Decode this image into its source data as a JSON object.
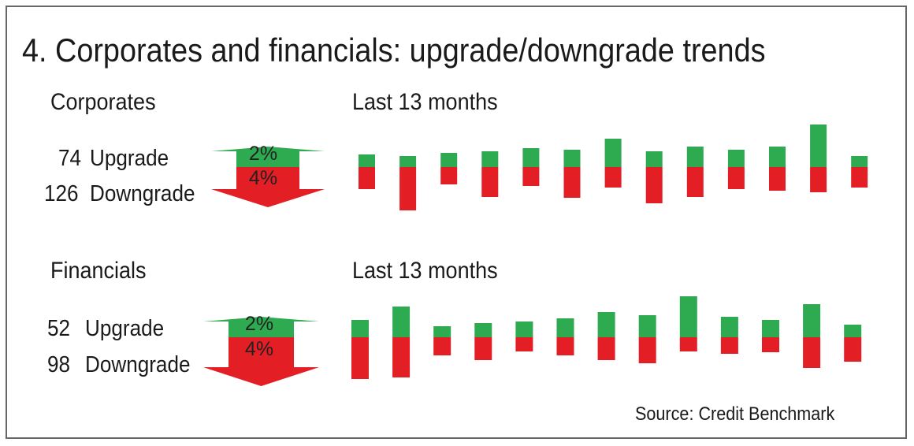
{
  "chart_data": {
    "type": "bar",
    "title": "4. Corporates and financials: upgrade/downgrade trends",
    "source": "Source: Credit Benchmark",
    "units": "relative (no axis shown)",
    "colors": {
      "upgrade": "#2eaa50",
      "downgrade": "#e31e24"
    },
    "panels": [
      {
        "name": "Corporates",
        "period": "Last 13 months",
        "upgrade_count": "74",
        "upgrade_label": "Upgrade",
        "downgrade_count": "126",
        "downgrade_label": "Downgrade",
        "upgrade_pct": "2%",
        "downgrade_pct": "4%",
        "series": [
          {
            "name": "Upgrade",
            "values": [
              16,
              14,
              18,
              20,
              24,
              22,
              36,
              20,
              26,
              22,
              26,
              54,
              14
            ]
          },
          {
            "name": "Downgrade",
            "values": [
              28,
              55,
              22,
              38,
              24,
              39,
              26,
              46,
              38,
              28,
              30,
              32,
              26
            ]
          }
        ]
      },
      {
        "name": "Financials",
        "period": "Last 13 months",
        "upgrade_count": "52",
        "upgrade_label": "Upgrade",
        "downgrade_count": "98",
        "downgrade_label": "Downgrade",
        "upgrade_pct": "2%",
        "downgrade_pct": "4%",
        "series": [
          {
            "name": "Upgrade",
            "values": [
              22,
              39,
              14,
              18,
              20,
              24,
              32,
              28,
              52,
              26,
              22,
              42,
              16
            ]
          },
          {
            "name": "Downgrade",
            "values": [
              53,
              51,
              23,
              29,
              18,
              23,
              29,
              33,
              18,
              21,
              19,
              39,
              31
            ]
          }
        ]
      }
    ]
  }
}
